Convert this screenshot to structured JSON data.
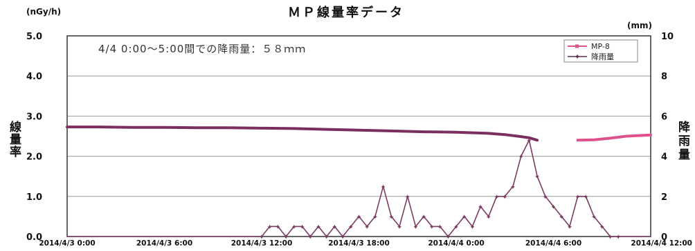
{
  "chart_data": {
    "type": "line",
    "title": "ＭＰ線量率データ",
    "annotation": "4/4 0:00～5:00間での降雨量：５８ｍｍ",
    "left_unit": "(nGy/h)",
    "right_unit": "(mm)",
    "ylabel_left": [
      "線",
      "量",
      "率"
    ],
    "ylabel_right": [
      "降",
      "雨",
      "量"
    ],
    "ylim_left": [
      0,
      5
    ],
    "ylim_right": [
      0,
      10
    ],
    "yticks_left": [
      "0.0",
      "1.0",
      "2.0",
      "3.0",
      "4.0",
      "5.0"
    ],
    "yticks_right": [
      "0",
      "2",
      "4",
      "6",
      "8",
      "10"
    ],
    "x_range_hours": [
      0,
      36
    ],
    "xticks": [
      "2014/4/3 0:00",
      "2014/4/3 6:00",
      "2014/4/3 12:00",
      "2014/4/3 18:00",
      "2014/4/4 0:00",
      "2014/4/4 6:00",
      "2014/4/4 12:00"
    ],
    "grid": true,
    "legend_position": "top-right",
    "series": [
      {
        "name": "MP-8",
        "axis": "left",
        "color": "#7a2f5f",
        "segments": [
          {
            "color": "#7a2f5f",
            "points": [
              [
                0,
                2.73
              ],
              [
                2,
                2.73
              ],
              [
                4,
                2.72
              ],
              [
                6,
                2.72
              ],
              [
                8,
                2.71
              ],
              [
                10,
                2.71
              ],
              [
                12,
                2.7
              ],
              [
                14,
                2.69
              ],
              [
                16,
                2.67
              ],
              [
                18,
                2.65
              ],
              [
                20,
                2.63
              ],
              [
                22,
                2.61
              ],
              [
                24,
                2.6
              ],
              [
                26,
                2.57
              ],
              [
                27,
                2.54
              ],
              [
                28,
                2.49
              ],
              [
                28.5,
                2.46
              ],
              [
                29,
                2.4
              ]
            ]
          },
          {
            "color": "#e0508a",
            "points": [
              [
                31.5,
                2.4
              ],
              [
                32.5,
                2.41
              ],
              [
                33.5,
                2.45
              ],
              [
                34.5,
                2.5
              ],
              [
                36,
                2.53
              ]
            ]
          }
        ]
      },
      {
        "name": "降雨量",
        "axis": "right",
        "color": "#7a3a62",
        "x": [
          0,
          1,
          2,
          3,
          4,
          5,
          6,
          7,
          8,
          9,
          10,
          11,
          12,
          12.5,
          13,
          13.5,
          14,
          14.5,
          15,
          15.5,
          16,
          16.5,
          17,
          17.5,
          18,
          18.5,
          19,
          19.5,
          20,
          20.5,
          21,
          21.5,
          22,
          22.5,
          23,
          23.5,
          24,
          24.5,
          25,
          25.5,
          26,
          26.5,
          27,
          27.5,
          28,
          28.5,
          29,
          29.5,
          30,
          30.5,
          31,
          31.5,
          32,
          32.5,
          33,
          33.5,
          34,
          34.5,
          35,
          35.5,
          36
        ],
        "values": [
          0,
          0,
          0,
          0,
          0,
          0,
          0,
          0,
          0,
          0,
          0,
          0,
          0,
          0.5,
          0.5,
          0,
          0.5,
          0.5,
          0,
          0.5,
          0,
          0.5,
          0,
          0.5,
          1,
          0.5,
          1,
          2.5,
          1,
          0.5,
          2,
          0.5,
          1,
          0.5,
          0.5,
          0,
          0.5,
          1,
          0.5,
          1.5,
          1,
          2,
          2,
          2.5,
          4,
          4.8,
          3,
          2,
          1.5,
          1,
          0.5,
          2,
          2,
          1,
          0.5,
          0,
          0,
          0,
          0,
          0,
          0
        ]
      }
    ]
  }
}
